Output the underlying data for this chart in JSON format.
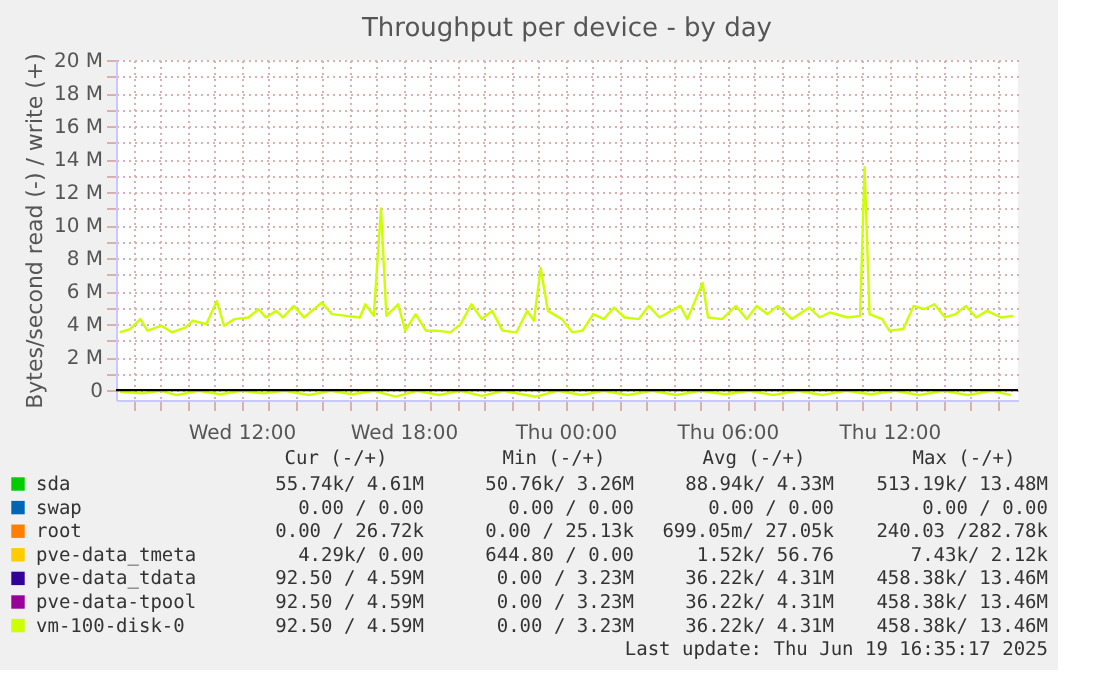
{
  "chart_data": {
    "type": "line",
    "title": "Throughput per device - by day",
    "ylabel": "Bytes/second read (-) / write (+)",
    "xlim": [
      "2025-06-18T07:21",
      "2025-06-19T16:46"
    ],
    "ylim": [
      -0.6,
      20
    ],
    "xticks": [
      {
        "value": "2025-06-18T08:00",
        "label": null
      },
      {
        "value": "2025-06-18T09:00",
        "label": null
      },
      {
        "value": "2025-06-18T10:00",
        "label": null
      },
      {
        "value": "2025-06-18T11:00",
        "label": null
      },
      {
        "value": "2025-06-18T12:00",
        "label": "Wed 12:00"
      },
      {
        "value": "2025-06-18T13:00",
        "label": null
      },
      {
        "value": "2025-06-18T14:00",
        "label": null
      },
      {
        "value": "2025-06-18T15:00",
        "label": null
      },
      {
        "value": "2025-06-18T16:00",
        "label": null
      },
      {
        "value": "2025-06-18T17:00",
        "label": null
      },
      {
        "value": "2025-06-18T18:00",
        "label": "Wed 18:00"
      },
      {
        "value": "2025-06-18T19:00",
        "label": null
      },
      {
        "value": "2025-06-18T20:00",
        "label": null
      },
      {
        "value": "2025-06-18T21:00",
        "label": null
      },
      {
        "value": "2025-06-18T22:00",
        "label": null
      },
      {
        "value": "2025-06-18T23:00",
        "label": null
      },
      {
        "value": "2025-06-19T00:00",
        "label": "Thu 00:00"
      },
      {
        "value": "2025-06-19T01:00",
        "label": null
      },
      {
        "value": "2025-06-19T02:00",
        "label": null
      },
      {
        "value": "2025-06-19T03:00",
        "label": null
      },
      {
        "value": "2025-06-19T04:00",
        "label": null
      },
      {
        "value": "2025-06-19T05:00",
        "label": null
      },
      {
        "value": "2025-06-19T06:00",
        "label": "Thu 06:00"
      },
      {
        "value": "2025-06-19T07:00",
        "label": null
      },
      {
        "value": "2025-06-19T08:00",
        "label": null
      },
      {
        "value": "2025-06-19T09:00",
        "label": null
      },
      {
        "value": "2025-06-19T10:00",
        "label": null
      },
      {
        "value": "2025-06-19T11:00",
        "label": null
      },
      {
        "value": "2025-06-19T12:00",
        "label": "Thu 12:00"
      },
      {
        "value": "2025-06-19T13:00",
        "label": null
      },
      {
        "value": "2025-06-19T14:00",
        "label": null
      },
      {
        "value": "2025-06-19T15:00",
        "label": null
      },
      {
        "value": "2025-06-19T16:00",
        "label": null
      }
    ],
    "yticks": [
      0,
      {
        "value": 1,
        "label": null
      },
      {
        "value": 2,
        "label": "2 M"
      },
      {
        "value": 3,
        "label": null
      },
      {
        "value": 4,
        "label": "4 M"
      },
      {
        "value": 5,
        "label": null
      },
      {
        "value": 6,
        "label": "6 M"
      },
      {
        "value": 7,
        "label": null
      },
      {
        "value": 8,
        "label": "8 M"
      },
      {
        "value": 9,
        "label": null
      },
      {
        "value": 10,
        "label": "10 M"
      },
      {
        "value": 11,
        "label": null
      },
      {
        "value": 12,
        "label": "12 M"
      },
      {
        "value": 13,
        "label": null
      },
      {
        "value": 14,
        "label": "14 M"
      },
      {
        "value": 15,
        "label": null
      },
      {
        "value": 16,
        "label": "16 M"
      },
      {
        "value": 17,
        "label": null
      },
      {
        "value": 18,
        "label": "18 M"
      },
      {
        "value": 19,
        "label": null
      },
      {
        "value": 20,
        "label": "20 M"
      }
    ],
    "grid": true,
    "legend": "bottom",
    "line_style": "solid",
    "ref_lines": [
      {
        "axis": "y",
        "value": 0,
        "color": "#000000"
      }
    ],
    "series": [
      {
        "name": "sda",
        "color": "#00cc00"
      },
      {
        "name": "swap",
        "color": "#0066b3"
      },
      {
        "name": "root",
        "color": "#ff8000"
      },
      {
        "name": "pve-data_tmeta",
        "color": "#ffcc00"
      },
      {
        "name": "pve-data_tdata",
        "color": "#330099"
      },
      {
        "name": "pve-data-tpool",
        "color": "#990099"
      },
      {
        "name": "vm-100-disk-0",
        "color": "#ccff00",
        "x": [
          "2025-06-18T07:29",
          "2025-06-18T07:52",
          "2025-06-18T08:15",
          "2025-06-18T08:31",
          "2025-06-18T09:02",
          "2025-06-18T09:25",
          "2025-06-18T09:56",
          "2025-06-18T10:11",
          "2025-06-18T10:42",
          "2025-06-18T11:05",
          "2025-06-18T11:21",
          "2025-06-18T11:44",
          "2025-06-18T12:15",
          "2025-06-18T12:38",
          "2025-06-18T12:54",
          "2025-06-18T13:17",
          "2025-06-18T13:32",
          "2025-06-18T13:56",
          "2025-06-18T14:19",
          "2025-06-18T14:58",
          "2025-06-18T15:21",
          "2025-06-18T15:52",
          "2025-06-18T16:23",
          "2025-06-18T16:35",
          "2025-06-18T16:54",
          "2025-06-18T17:10",
          "2025-06-18T17:22",
          "2025-06-18T17:48",
          "2025-06-18T18:04",
          "2025-06-18T18:27",
          "2025-06-18T18:50",
          "2025-06-18T19:13",
          "2025-06-18T19:44",
          "2025-06-18T20:07",
          "2025-06-18T20:31",
          "2025-06-18T20:54",
          "2025-06-18T21:17",
          "2025-06-18T21:40",
          "2025-06-18T22:11",
          "2025-06-18T22:35",
          "2025-06-18T22:50",
          "2025-06-18T23:05",
          "2025-06-18T23:21",
          "2025-06-18T23:52",
          "2025-06-19T00:15",
          "2025-06-19T00:38",
          "2025-06-19T01:02",
          "2025-06-19T01:25",
          "2025-06-19T01:48",
          "2025-06-19T02:11",
          "2025-06-19T02:43",
          "2025-06-19T03:05",
          "2025-06-19T03:29",
          "2025-06-19T04:15",
          "2025-06-19T04:31",
          "2025-06-19T05:05",
          "2025-06-19T05:17",
          "2025-06-19T05:48",
          "2025-06-19T06:19",
          "2025-06-19T06:43",
          "2025-06-19T07:05",
          "2025-06-19T07:29",
          "2025-06-19T07:52",
          "2025-06-19T08:23",
          "2025-06-19T09:02",
          "2025-06-19T09:25",
          "2025-06-19T09:48",
          "2025-06-19T10:27",
          "2025-06-19T10:55",
          "2025-06-19T11:05",
          "2025-06-19T11:16",
          "2025-06-19T11:44",
          "2025-06-19T12:00",
          "2025-06-19T12:31",
          "2025-06-19T12:54",
          "2025-06-19T13:17",
          "2025-06-19T13:40",
          "2025-06-19T14:04",
          "2025-06-19T14:27",
          "2025-06-19T14:50",
          "2025-06-19T15:13",
          "2025-06-19T15:37",
          "2025-06-19T16:08",
          "2025-06-19T16:35"
        ],
        "values": [
          3.5,
          3.7,
          4.3,
          3.6,
          3.9,
          3.5,
          3.8,
          4.2,
          4.0,
          5.4,
          3.9,
          4.3,
          4.4,
          4.9,
          4.4,
          4.8,
          4.4,
          5.1,
          4.4,
          5.3,
          4.6,
          4.5,
          4.4,
          5.2,
          4.5,
          11.0,
          4.5,
          5.2,
          3.6,
          4.6,
          3.6,
          3.6,
          3.5,
          4.0,
          5.2,
          4.3,
          4.8,
          3.6,
          3.5,
          4.8,
          4.2,
          7.4,
          4.8,
          4.3,
          3.5,
          3.6,
          4.6,
          4.3,
          5.0,
          4.4,
          4.3,
          5.1,
          4.4,
          5.1,
          4.3,
          6.5,
          4.4,
          4.3,
          5.1,
          4.3,
          5.1,
          4.6,
          5.1,
          4.3,
          5.0,
          4.4,
          4.7,
          4.4,
          4.5,
          13.5,
          4.6,
          4.3,
          3.6,
          3.7,
          5.1,
          4.9,
          5.2,
          4.4,
          4.6,
          5.1,
          4.4,
          4.8,
          4.4,
          4.5
        ]
      },
      {
        "color": "#ccff00",
        "x": [
          "2025-06-18T07:30",
          "2025-06-18T08:18",
          "2025-06-18T09:00",
          "2025-06-18T09:36",
          "2025-06-18T10:24",
          "2025-06-18T11:12",
          "2025-06-18T12:00",
          "2025-06-18T12:48",
          "2025-06-18T13:36",
          "2025-06-18T14:30",
          "2025-06-18T15:18",
          "2025-06-18T16:06",
          "2025-06-18T16:54",
          "2025-06-18T17:42",
          "2025-06-18T18:30",
          "2025-06-18T19:18",
          "2025-06-18T20:06",
          "2025-06-18T20:54",
          "2025-06-18T21:42",
          "2025-06-18T22:54",
          "2025-06-18T23:42",
          "2025-06-19T00:36",
          "2025-06-19T01:24",
          "2025-06-19T02:18",
          "2025-06-19T03:12",
          "2025-06-19T04:06",
          "2025-06-19T05:00",
          "2025-06-19T05:54",
          "2025-06-19T06:48",
          "2025-06-19T07:42",
          "2025-06-19T08:36",
          "2025-06-19T09:30",
          "2025-06-19T10:24",
          "2025-06-19T11:18",
          "2025-06-19T12:12",
          "2025-06-19T13:06",
          "2025-06-19T14:00",
          "2025-06-19T14:54",
          "2025-06-19T15:48",
          "2025-06-19T16:30"
        ],
        "values": [
          -0.1,
          -0.2,
          -0.05,
          -0.3,
          -0.05,
          -0.25,
          -0.05,
          -0.2,
          -0.05,
          -0.3,
          -0.05,
          -0.25,
          -0.05,
          -0.4,
          -0.05,
          -0.3,
          -0.05,
          -0.35,
          -0.05,
          -0.4,
          -0.05,
          -0.3,
          -0.05,
          -0.3,
          -0.05,
          -0.3,
          -0.05,
          -0.25,
          -0.05,
          -0.3,
          -0.05,
          -0.3,
          -0.05,
          -0.25,
          -0.05,
          -0.3,
          -0.05,
          -0.3,
          -0.05,
          -0.3
        ]
      }
    ],
    "annotations": [
      "Cur (-/+)",
      "Min (-/+)",
      "Avg (-/+)",
      "Max (-/+)",
      "55.74k/  4.61M",
      "50.76k/  3.26M",
      "88.94k/  4.33M",
      "513.19k/ 13.48M",
      "0.00 /  0.00",
      "0.00 /  0.00",
      "0.00 /  0.00",
      "0.00 /  0.00",
      "0.00 / 26.72k",
      "0.00 / 25.13k",
      "699.05m/ 27.05k",
      "240.03 /282.78k",
      "4.29k/  0.00",
      "644.80 /  0.00",
      "1.52k/ 56.76",
      "7.43k/  2.12k",
      "92.50 /  4.59M",
      "0.00 /  3.23M",
      "36.22k/  4.31M",
      "458.38k/ 13.46M",
      "92.50 /  4.59M",
      "0.00 /  3.23M",
      "36.22k/  4.31M",
      "458.38k/ 13.46M",
      "92.50 /  4.59M",
      "0.00 /  3.23M",
      "36.22k/  4.31M",
      "458.38k/ 13.46M",
      "Last update: Thu Jun 19 16:35:17 2025"
    ]
  }
}
